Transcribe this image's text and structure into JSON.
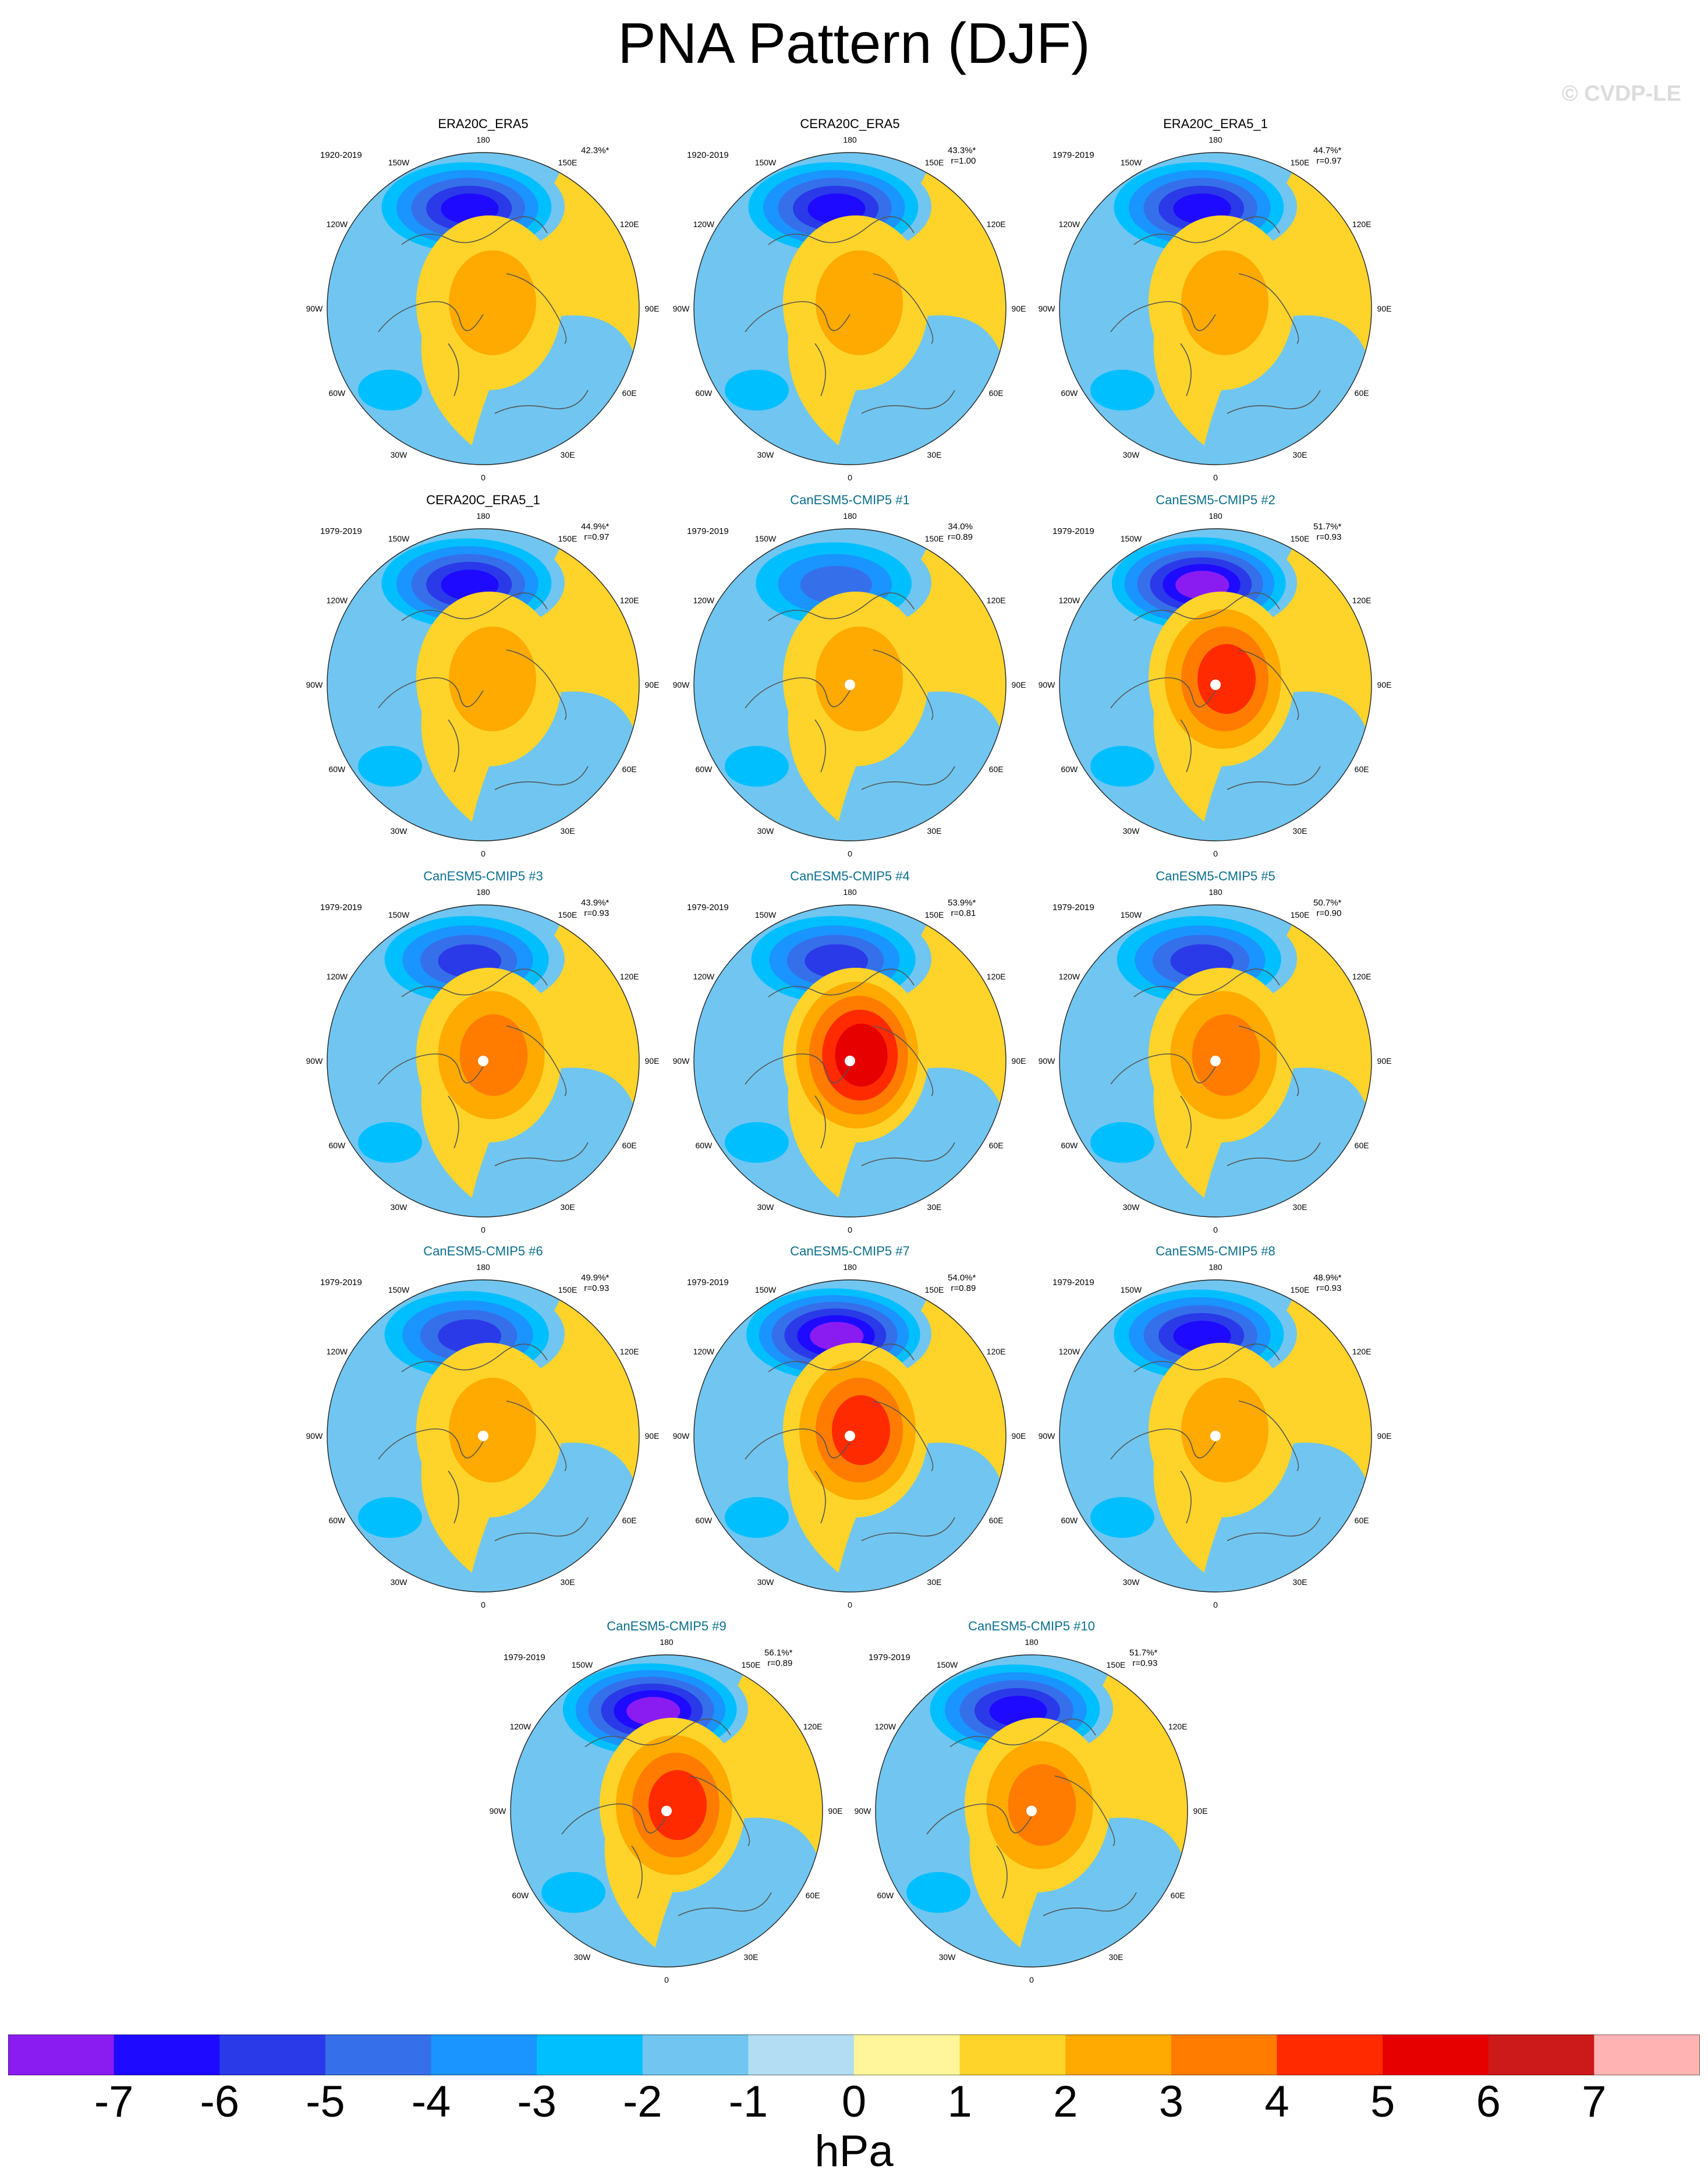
{
  "title": "PNA Pattern (DJF)",
  "watermark": "© CVDP-LE",
  "longitude_labels": [
    "180",
    "150E",
    "120E",
    "90E",
    "60E",
    "30E",
    "0",
    "30W",
    "60W",
    "90W",
    "120W",
    "150W"
  ],
  "panels": [
    {
      "title": "ERA20C_ERA5",
      "period": "1920-2019",
      "pct": "42.3%*",
      "r": "",
      "kind": "obs",
      "neg": -6,
      "pos": 2,
      "pole_dot": false
    },
    {
      "title": "CERA20C_ERA5",
      "period": "1920-2019",
      "pct": "43.3%*",
      "r": "r=1.00",
      "kind": "obs",
      "neg": -6,
      "pos": 2,
      "pole_dot": false
    },
    {
      "title": "ERA20C_ERA5_1",
      "period": "1979-2019",
      "pct": "44.7%*",
      "r": "r=0.97",
      "kind": "obs",
      "neg": -6,
      "pos": 2,
      "pole_dot": false
    },
    {
      "title": "CERA20C_ERA5_1",
      "period": "1979-2019",
      "pct": "44.9%*",
      "r": "r=0.97",
      "kind": "obs",
      "neg": -6,
      "pos": 2,
      "pole_dot": false
    },
    {
      "title": "CanESM5-CMIP5 #1",
      "period": "1979-2019",
      "pct": "34.0%",
      "r": "r=0.89",
      "kind": "model",
      "neg": -4,
      "pos": 2,
      "pole_dot": true
    },
    {
      "title": "CanESM5-CMIP5 #2",
      "period": "1979-2019",
      "pct": "51.7%*",
      "r": "r=0.93",
      "kind": "model",
      "neg": -7,
      "pos": 4,
      "pole_dot": true
    },
    {
      "title": "CanESM5-CMIP5 #3",
      "period": "1979-2019",
      "pct": "43.9%*",
      "r": "r=0.93",
      "kind": "model",
      "neg": -5,
      "pos": 3,
      "pole_dot": true
    },
    {
      "title": "CanESM5-CMIP5 #4",
      "period": "1979-2019",
      "pct": "53.9%*",
      "r": "r=0.81",
      "kind": "model",
      "neg": -5,
      "pos": 5,
      "pole_dot": true
    },
    {
      "title": "CanESM5-CMIP5 #5",
      "period": "1979-2019",
      "pct": "50.7%*",
      "r": "r=0.90",
      "kind": "model",
      "neg": -5,
      "pos": 3,
      "pole_dot": true
    },
    {
      "title": "CanESM5-CMIP5 #6",
      "period": "1979-2019",
      "pct": "49.9%*",
      "r": "r=0.93",
      "kind": "model",
      "neg": -5,
      "pos": 2,
      "pole_dot": true
    },
    {
      "title": "CanESM5-CMIP5 #7",
      "period": "1979-2019",
      "pct": "54.0%*",
      "r": "r=0.89",
      "kind": "model",
      "neg": -7,
      "pos": 4,
      "pole_dot": true
    },
    {
      "title": "CanESM5-CMIP5 #8",
      "period": "1979-2019",
      "pct": "48.9%*",
      "r": "r=0.93",
      "kind": "model",
      "neg": -6,
      "pos": 2,
      "pole_dot": true
    },
    {
      "title": "CanESM5-CMIP5 #9",
      "period": "1979-2019",
      "pct": "56.1%*",
      "r": "r=0.89",
      "kind": "model",
      "neg": -7,
      "pos": 4,
      "pole_dot": true
    },
    {
      "title": "CanESM5-CMIP5 #10",
      "period": "1979-2019",
      "pct": "51.7%*",
      "r": "r=0.93",
      "kind": "model",
      "neg": -6,
      "pos": 3,
      "pole_dot": true
    }
  ],
  "colorbar": {
    "labels": [
      "-7",
      "-6",
      "-5",
      "-4",
      "-3",
      "-2",
      "-1",
      "0",
      "1",
      "2",
      "3",
      "4",
      "5",
      "6",
      "7"
    ],
    "colors": [
      "#8a1cf2",
      "#1e0aff",
      "#2a3ae8",
      "#3570ea",
      "#1a94ff",
      "#00bfff",
      "#70c6f0",
      "#b3ddf2",
      "#fff59a",
      "#ffd42a",
      "#ffaa00",
      "#ff7c00",
      "#ff2a00",
      "#e60000",
      "#cc1a1a",
      "#ffb3b3"
    ],
    "units": "hPa"
  }
}
